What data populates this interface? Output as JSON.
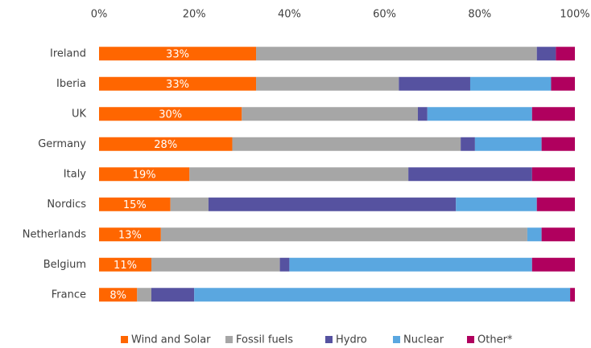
{
  "chart_data": {
    "type": "stacked_bar_horizontal",
    "categories": [
      "Ireland",
      "Iberia",
      "UK",
      "Germany",
      "Italy",
      "Nordics",
      "Netherlands",
      "Belgium",
      "France"
    ],
    "series": [
      {
        "name": "Wind and Solar",
        "color": "#ff6600",
        "values": [
          33,
          33,
          30,
          28,
          19,
          15,
          13,
          11,
          8
        ],
        "value_labels": [
          "33%",
          "33%",
          "30%",
          "28%",
          "19%",
          "15%",
          "13%",
          "11%",
          "8%"
        ]
      },
      {
        "name": "Fossil fuels",
        "color": "#a6a6a6",
        "values": [
          59,
          30,
          37,
          48,
          46,
          8,
          77,
          27,
          3
        ]
      },
      {
        "name": "Hydro",
        "color": "#5652a0",
        "values": [
          4,
          15,
          2,
          3,
          26,
          52,
          0,
          2,
          9
        ]
      },
      {
        "name": "Nuclear",
        "color": "#5aa7e0",
        "values": [
          0,
          17,
          22,
          14,
          0,
          17,
          3,
          51,
          79
        ]
      },
      {
        "name": "Other*",
        "color": "#b0005e",
        "values": [
          4,
          5,
          9,
          7,
          9,
          8,
          7,
          9,
          1
        ]
      }
    ],
    "xlim": [
      0,
      100
    ],
    "xticks": [
      {
        "value": 0,
        "label": "0%"
      },
      {
        "value": 20,
        "label": "20%"
      },
      {
        "value": 40,
        "label": "40%"
      },
      {
        "value": 60,
        "label": "60%"
      },
      {
        "value": 80,
        "label": "80%"
      },
      {
        "value": 100,
        "label": "100%"
      }
    ],
    "grid": false,
    "legend": "bottom"
  }
}
